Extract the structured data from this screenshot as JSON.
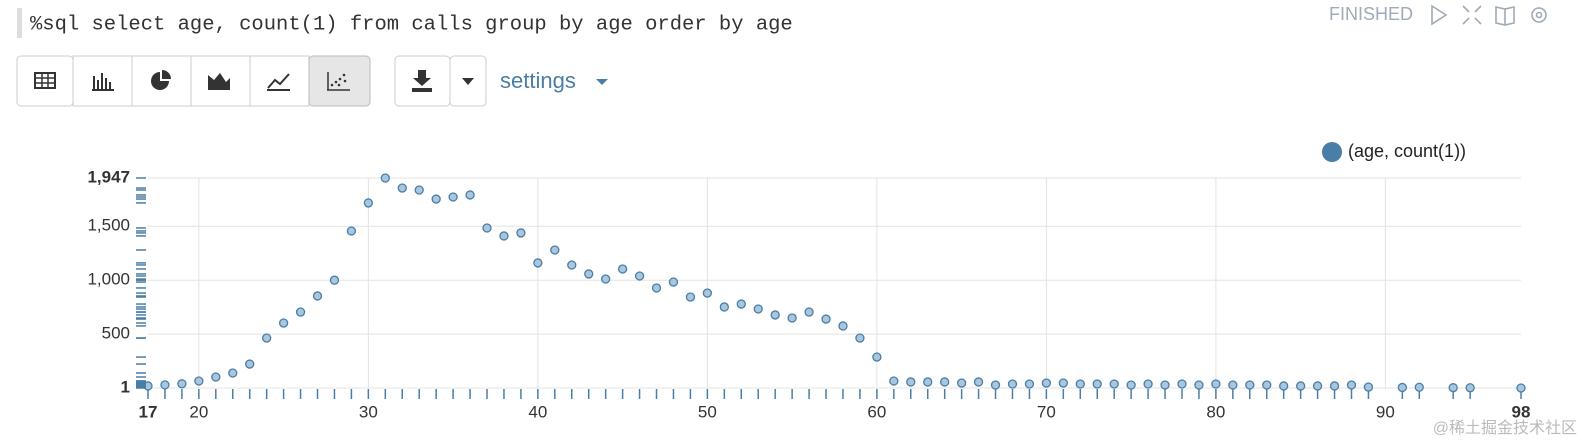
{
  "paragraph": {
    "code": "%sql select age, count(1) from calls group by age order by age",
    "status": "FINISHED",
    "settings": "settings",
    "watermark": "@稀土掘金技术社区"
  },
  "chart_data": {
    "type": "scatter",
    "series": [
      {
        "name": "(age, count(1))",
        "color": "#4a7ea6",
        "x": [
          17,
          18,
          19,
          20,
          21,
          22,
          23,
          24,
          25,
          26,
          27,
          28,
          29,
          30,
          31,
          32,
          33,
          34,
          35,
          36,
          37,
          38,
          39,
          40,
          41,
          42,
          43,
          44,
          45,
          46,
          47,
          48,
          49,
          50,
          51,
          52,
          53,
          54,
          55,
          56,
          57,
          58,
          59,
          60,
          61,
          62,
          63,
          64,
          65,
          66,
          67,
          68,
          69,
          70,
          71,
          72,
          73,
          74,
          75,
          76,
          77,
          78,
          79,
          80,
          81,
          82,
          83,
          84,
          85,
          86,
          87,
          88,
          89,
          91,
          92,
          94,
          95,
          98
        ],
        "values": [
          20,
          30,
          40,
          66,
          103,
          140,
          223,
          464,
          603,
          705,
          854,
          1000,
          1456,
          1716,
          1947,
          1854,
          1836,
          1752,
          1771,
          1790,
          1484,
          1410,
          1438,
          1160,
          1280,
          1141,
          1058,
          1011,
          1104,
          1039,
          928,
          983,
          844,
          881,
          752,
          779,
          733,
          678,
          650,
          705,
          640,
          576,
          464,
          288,
          66,
          57,
          57,
          57,
          47,
          57,
          29,
          38,
          38,
          47,
          47,
          38,
          38,
          38,
          29,
          38,
          29,
          38,
          29,
          38,
          29,
          29,
          29,
          20,
          20,
          20,
          20,
          29,
          10,
          6,
          8,
          4,
          3,
          1
        ]
      }
    ],
    "xlim": [
      17,
      98
    ],
    "xticks": [
      17,
      20,
      30,
      40,
      50,
      60,
      70,
      80,
      90,
      98
    ],
    "ylim": [
      1,
      1947
    ],
    "yticks": [
      1,
      500,
      {
        "value": 1000,
        "label": "1,000"
      },
      {
        "value": 1500,
        "label": "1,500"
      },
      {
        "value": 1947,
        "label": "1,947"
      }
    ],
    "grid": true,
    "legend": "top-right"
  }
}
